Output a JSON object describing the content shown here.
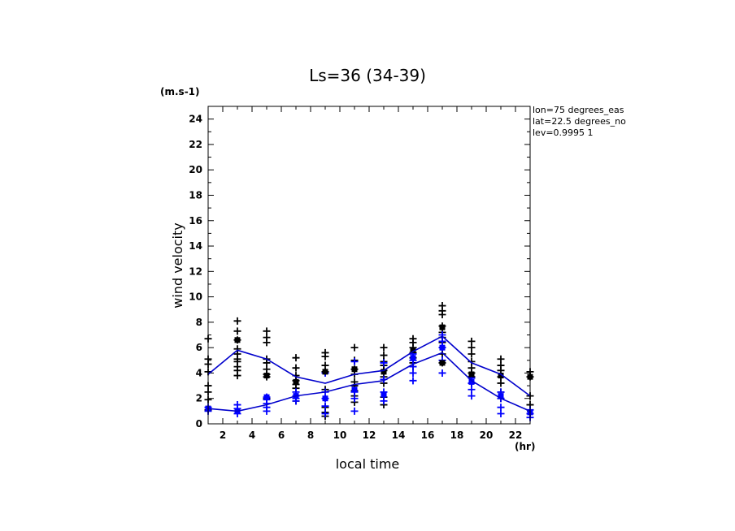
{
  "chart_data": {
    "type": "scatter",
    "title": "Ls=36 (34-39)",
    "xlabel": "local time",
    "xunit": "(hr)",
    "ylabel": "wind velocity",
    "yunit": "(m.s-1)",
    "xlim": [
      1,
      23
    ],
    "ylim": [
      0,
      25
    ],
    "xticks": [
      2,
      4,
      6,
      8,
      10,
      12,
      14,
      16,
      18,
      20,
      22
    ],
    "yticks": [
      0,
      2,
      4,
      6,
      8,
      10,
      12,
      14,
      16,
      18,
      20,
      22,
      24
    ],
    "grid": false,
    "annotations": [
      "lon=75 degrees_eas",
      "lat=22.5 degrees_no",
      "lev=0.9995 1"
    ],
    "colors": {
      "black_series": "#000000",
      "blue_series": "#0000ff",
      "mean_line": "#0000cc"
    },
    "series": [
      {
        "color": "black",
        "marker": "plus",
        "x": [
          1,
          1,
          1,
          1,
          1,
          1,
          1,
          1,
          3,
          3,
          3,
          3,
          3,
          3,
          3,
          3,
          3,
          3,
          5,
          5,
          5,
          5,
          5,
          5,
          5,
          5,
          5,
          7,
          7,
          7,
          7,
          7,
          7,
          7,
          9,
          9,
          9,
          9,
          9,
          9,
          9,
          9,
          11,
          11,
          11,
          11,
          11,
          11,
          11,
          11,
          11,
          13,
          13,
          13,
          13,
          13,
          13,
          13,
          13,
          13,
          15,
          15,
          15,
          15,
          15,
          15,
          15,
          17,
          17,
          17,
          17,
          17,
          17,
          17,
          17,
          17,
          17,
          19,
          19,
          19,
          19,
          19,
          19,
          19,
          19,
          21,
          21,
          21,
          21,
          21,
          21,
          21,
          23,
          23,
          23,
          23,
          23
        ],
        "y": [
          6.7,
          5.1,
          4.7,
          4.1,
          3.0,
          2.5,
          1.9,
          1.1,
          8.1,
          7.3,
          6.6,
          5.9,
          5.5,
          5.1,
          4.9,
          4.5,
          4.2,
          3.8,
          7.3,
          6.8,
          6.4,
          5.1,
          4.8,
          4.3,
          3.9,
          3.7,
          2.0,
          5.2,
          4.4,
          3.8,
          3.4,
          3.1,
          2.8,
          1.8,
          5.6,
          5.3,
          4.6,
          4.1,
          2.7,
          1.3,
          0.9,
          0.6,
          6.0,
          5.0,
          4.3,
          3.9,
          3.3,
          3.0,
          2.6,
          2.2,
          1.7,
          6.0,
          5.4,
          4.9,
          4.6,
          4.2,
          3.7,
          3.2,
          2.1,
          1.5,
          6.7,
          6.4,
          6.0,
          5.6,
          5.2,
          4.8,
          4.5,
          9.3,
          8.9,
          8.6,
          7.7,
          7.2,
          6.8,
          6.4,
          6.0,
          5.5,
          4.8,
          6.5,
          6.0,
          5.5,
          4.9,
          4.4,
          4.0,
          3.7,
          3.2,
          5.1,
          4.6,
          4.2,
          3.7,
          3.2,
          2.5,
          2.0,
          4.1,
          3.7,
          2.2,
          1.5,
          0.8
        ]
      },
      {
        "color": "blue",
        "marker": "plus",
        "x": [
          1,
          1,
          3,
          3,
          3,
          5,
          5,
          5,
          5,
          5,
          7,
          7,
          7,
          7,
          9,
          9,
          9,
          9,
          9,
          11,
          11,
          11,
          11,
          13,
          13,
          13,
          13,
          15,
          15,
          15,
          15,
          15,
          17,
          17,
          17,
          17,
          17,
          19,
          19,
          19,
          19,
          21,
          21,
          21,
          21,
          23,
          23,
          23
        ],
        "y": [
          1.3,
          1.0,
          1.5,
          1.2,
          0.8,
          2.1,
          1.9,
          1.6,
          1.3,
          1.0,
          2.5,
          2.2,
          2.0,
          1.8,
          4.0,
          2.5,
          2.0,
          1.4,
          0.8,
          4.9,
          2.5,
          2.0,
          1.0,
          4.8,
          3.5,
          2.5,
          1.8,
          5.5,
          5.0,
          4.5,
          4.0,
          3.4,
          7.0,
          6.5,
          6.0,
          5.0,
          4.0,
          3.6,
          3.2,
          2.7,
          2.2,
          2.5,
          2.0,
          1.3,
          0.8,
          1.1,
          0.8,
          0.5
        ]
      },
      {
        "color": "black",
        "marker": "square",
        "x": [
          1,
          3,
          5,
          7,
          9,
          11,
          13,
          15,
          17,
          17,
          19,
          21,
          23
        ],
        "y": [
          1.2,
          6.6,
          3.8,
          3.3,
          4.1,
          4.3,
          4.1,
          5.8,
          7.6,
          4.8,
          3.9,
          3.8,
          3.7
        ]
      },
      {
        "color": "blue",
        "marker": "square",
        "x": [
          1,
          3,
          5,
          7,
          9,
          11,
          13,
          15,
          17,
          19,
          21,
          23
        ],
        "y": [
          1.2,
          1.0,
          2.1,
          2.2,
          2.0,
          2.7,
          2.3,
          5.2,
          6.0,
          3.3,
          2.2,
          0.9
        ]
      },
      {
        "color": "blue",
        "marker": "line",
        "x": [
          1,
          3,
          5,
          7,
          9,
          11,
          13,
          15,
          17,
          19,
          21,
          23
        ],
        "y": [
          3.9,
          5.8,
          5.1,
          3.7,
          3.2,
          3.9,
          4.2,
          5.7,
          6.9,
          4.8,
          3.9,
          2.2
        ]
      },
      {
        "color": "blue",
        "marker": "line",
        "x": [
          1,
          3,
          5,
          7,
          9,
          11,
          13,
          15,
          17,
          19,
          21,
          23
        ],
        "y": [
          1.2,
          1.0,
          1.5,
          2.2,
          2.5,
          3.1,
          3.4,
          4.7,
          5.6,
          3.4,
          2.0,
          1.0
        ]
      }
    ]
  }
}
